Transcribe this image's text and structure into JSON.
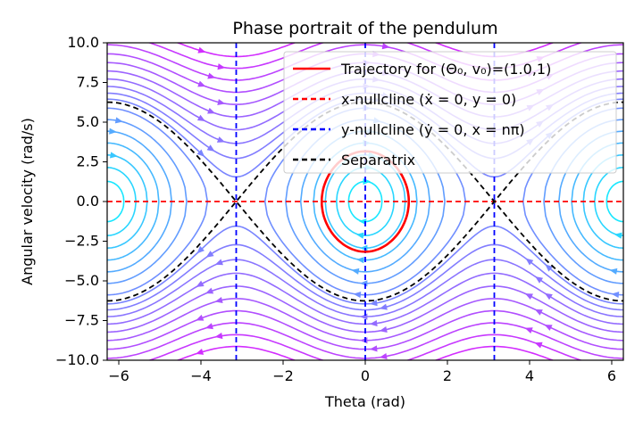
{
  "chart_data": {
    "type": "line",
    "title": "Phase portrait of the pendulum",
    "xlabel": "Theta (rad)",
    "ylabel": "Angular velocity (rad/s)",
    "xlim": [
      -6.283,
      6.283
    ],
    "ylim": [
      -10,
      10
    ],
    "xticks": [
      -6,
      -4,
      -2,
      0,
      2,
      4,
      6
    ],
    "xtick_labels": [
      "−6",
      "−4",
      "−2",
      "0",
      "2",
      "4",
      "6"
    ],
    "yticks": [
      -10,
      -7.5,
      -5,
      -2.5,
      0,
      2.5,
      5,
      7.5,
      10
    ],
    "ytick_labels": [
      "−10.0",
      "−7.5",
      "−5.0",
      "−2.5",
      "0.0",
      "2.5",
      "5.0",
      "7.5",
      "10.0"
    ],
    "legend_position": "top-right",
    "series": [
      {
        "name": "Trajectory for (Θ₀, v₀)=(1.0,1)",
        "kind": "trajectory",
        "color": "#ff0000",
        "theta0": 1.0,
        "v0": 1
      },
      {
        "name": "x-nullcline (ẋ = 0, y = 0)",
        "kind": "x-nullcline",
        "color": "#ff0000",
        "y": 0
      },
      {
        "name": "y-nullcline (ẏ = 0, x = nπ)",
        "kind": "y-nullcline",
        "color": "#0000ff",
        "x": [
          -3.1416,
          0,
          3.1416
        ]
      },
      {
        "name": "Separatrix",
        "kind": "separatrix",
        "color": "#000000"
      }
    ],
    "streamlines": {
      "colormap": "cool",
      "min_color": "#00ffff",
      "max_color": "#ff00ff"
    },
    "grid": false
  }
}
